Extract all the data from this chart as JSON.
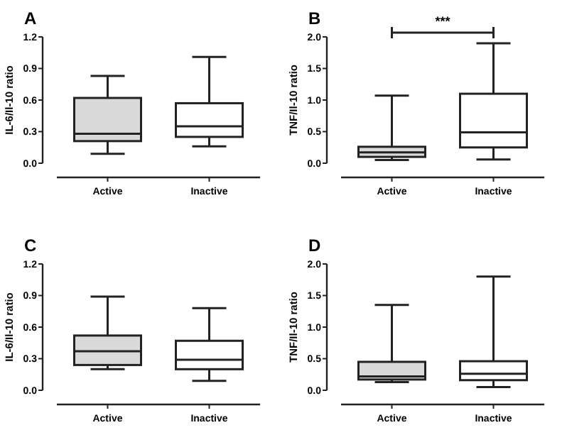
{
  "chart_data": [
    {
      "type": "box",
      "title": "A",
      "ylabel": "IL-6/Il-10 ratio",
      "categories": [
        "Active",
        "Inactive"
      ],
      "colors": [
        "#d9d9d9",
        "#ffffff"
      ],
      "ylim": [
        0,
        1.2
      ],
      "yticks": [
        {
          "value": 0,
          "label": "0.0"
        },
        {
          "value": 0.3,
          "label": "0.3"
        },
        {
          "value": 0.6,
          "label": "0.6"
        },
        {
          "value": 0.9,
          "label": "0.9"
        },
        {
          "value": 1.2,
          "label": "1.2"
        }
      ],
      "boxes": [
        {
          "low": 0.09,
          "q1": 0.21,
          "median": 0.28,
          "q3": 0.62,
          "high": 0.83
        },
        {
          "low": 0.16,
          "q1": 0.25,
          "median": 0.35,
          "q3": 0.57,
          "high": 1.01
        }
      ]
    },
    {
      "type": "box",
      "title": "B",
      "ylabel": "TNF/Il-10 ratio",
      "categories": [
        "Active",
        "Inactive"
      ],
      "colors": [
        "#d9d9d9",
        "#ffffff"
      ],
      "ylim": [
        0,
        2
      ],
      "yticks": [
        {
          "value": 0,
          "label": "0.0"
        },
        {
          "value": 0.5,
          "label": "0.5"
        },
        {
          "value": 1,
          "label": "1.0"
        },
        {
          "value": 1.5,
          "label": "1.5"
        },
        {
          "value": 2,
          "label": "2.0"
        }
      ],
      "annotations": [
        "***"
      ],
      "boxes": [
        {
          "low": 0.05,
          "q1": 0.1,
          "median": 0.17,
          "q3": 0.26,
          "high": 1.07
        },
        {
          "low": 0.06,
          "q1": 0.25,
          "median": 0.49,
          "q3": 1.1,
          "high": 1.9
        }
      ]
    },
    {
      "type": "box",
      "title": "C",
      "ylabel": "IL-6/Il-10 ratio",
      "categories": [
        "Active",
        "Inactive"
      ],
      "colors": [
        "#d9d9d9",
        "#ffffff"
      ],
      "ylim": [
        0,
        1.2
      ],
      "yticks": [
        {
          "value": 0,
          "label": "0.0"
        },
        {
          "value": 0.3,
          "label": "0.3"
        },
        {
          "value": 0.6,
          "label": "0.6"
        },
        {
          "value": 0.9,
          "label": "0.9"
        },
        {
          "value": 1.2,
          "label": "1.2"
        }
      ],
      "boxes": [
        {
          "low": 0.2,
          "q1": 0.24,
          "median": 0.37,
          "q3": 0.52,
          "high": 0.89
        },
        {
          "low": 0.09,
          "q1": 0.2,
          "median": 0.29,
          "q3": 0.47,
          "high": 0.78
        }
      ]
    },
    {
      "type": "box",
      "title": "D",
      "ylabel": "TNF/Il-10 ratio",
      "categories": [
        "Active",
        "Inactive"
      ],
      "colors": [
        "#d9d9d9",
        "#ffffff"
      ],
      "ylim": [
        0,
        2
      ],
      "yticks": [
        {
          "value": 0,
          "label": "0.0"
        },
        {
          "value": 0.5,
          "label": "0.5"
        },
        {
          "value": 1,
          "label": "1.0"
        },
        {
          "value": 1.5,
          "label": "1.5"
        },
        {
          "value": 2,
          "label": "2.0"
        }
      ],
      "boxes": [
        {
          "low": 0.13,
          "q1": 0.17,
          "median": 0.22,
          "q3": 0.45,
          "high": 1.35
        },
        {
          "low": 0.05,
          "q1": 0.16,
          "median": 0.26,
          "q3": 0.46,
          "high": 1.8
        }
      ]
    }
  ]
}
